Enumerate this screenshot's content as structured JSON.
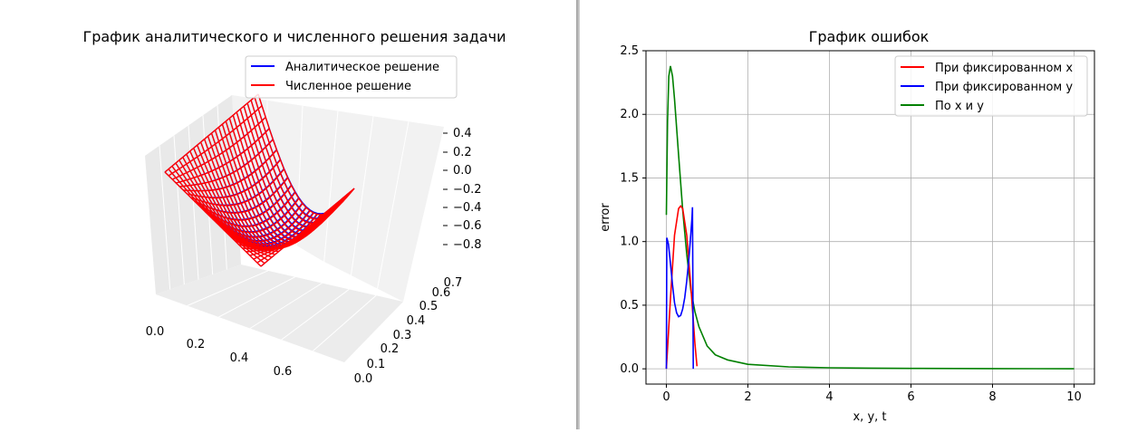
{
  "chart_data": [
    {
      "type": "surface3d",
      "title": "График аналитического и численного решения задачи",
      "legend": {
        "location": "top-right",
        "entries": [
          {
            "label": "Аналитическое решение",
            "color": "#0000ff"
          },
          {
            "label": "Численное решение",
            "color": "#ff0000"
          }
        ]
      },
      "x_ticks": [
        "0.0",
        "0.2",
        "0.4",
        "0.6"
      ],
      "y_ticks": [
        "0.0",
        "0.1",
        "0.2",
        "0.3",
        "0.4",
        "0.5",
        "0.6",
        "0.7"
      ],
      "z_ticks": [
        "0.4",
        "0.2",
        "0.0",
        "−0.2",
        "−0.4",
        "−0.6",
        "−0.8"
      ],
      "xlim": [
        0,
        0.785
      ],
      "ylim": [
        0,
        0.785
      ],
      "zlim": [
        -0.9,
        0.5
      ],
      "surface": "wireframe: z ≈ 0 along the edges, minimum ≈ −0.9 near x = 0, y = 0.4",
      "series": [
        {
          "name": "Аналитическое решение",
          "color": "#0000ff"
        },
        {
          "name": "Численное решение",
          "color": "#ff0000"
        }
      ]
    },
    {
      "type": "line",
      "title": "График ошибок",
      "xlabel": "x, y, t",
      "ylabel": "error",
      "xlim": [
        -0.5,
        10.5
      ],
      "ylim": [
        -0.12,
        2.5
      ],
      "x_ticks": [
        "0",
        "2",
        "4",
        "6",
        "8",
        "10"
      ],
      "y_ticks": [
        "0.0",
        "0.5",
        "1.0",
        "1.5",
        "2.0",
        "2.5"
      ],
      "grid": true,
      "legend": {
        "location": "top-right"
      },
      "series": [
        {
          "name": "При фиксированном x",
          "color": "#ff0000",
          "x": [
            0,
            0.1,
            0.2,
            0.3,
            0.35,
            0.4,
            0.5,
            0.6,
            0.7,
            0.75
          ],
          "y": [
            0.0,
            0.55,
            1.05,
            1.26,
            1.28,
            1.26,
            1.05,
            0.65,
            0.2,
            0.02
          ]
        },
        {
          "name": "При фиксированном y",
          "color": "#0000ff",
          "x": [
            0,
            0.01,
            0.05,
            0.1,
            0.15,
            0.2,
            0.25,
            0.3,
            0.35,
            0.4,
            0.45,
            0.5,
            0.55,
            0.6,
            0.63,
            0.64,
            0.65,
            0.66
          ],
          "y": [
            0.0,
            1.03,
            0.98,
            0.83,
            0.66,
            0.52,
            0.44,
            0.41,
            0.42,
            0.47,
            0.56,
            0.69,
            0.86,
            1.06,
            1.19,
            1.27,
            0.6,
            0.0
          ]
        },
        {
          "name": "По x и y",
          "color": "#008000",
          "x": [
            0,
            0.03,
            0.06,
            0.1,
            0.15,
            0.2,
            0.3,
            0.4,
            0.5,
            0.6,
            0.7,
            0.8,
            1.0,
            1.2,
            1.5,
            2.0,
            3.0,
            4.0,
            5.0,
            6.0,
            8.0,
            10.0
          ],
          "y": [
            1.21,
            1.95,
            2.3,
            2.38,
            2.3,
            2.12,
            1.68,
            1.25,
            0.9,
            0.62,
            0.45,
            0.33,
            0.18,
            0.11,
            0.07,
            0.035,
            0.015,
            0.008,
            0.005,
            0.003,
            0.002,
            0.0
          ]
        }
      ]
    }
  ]
}
